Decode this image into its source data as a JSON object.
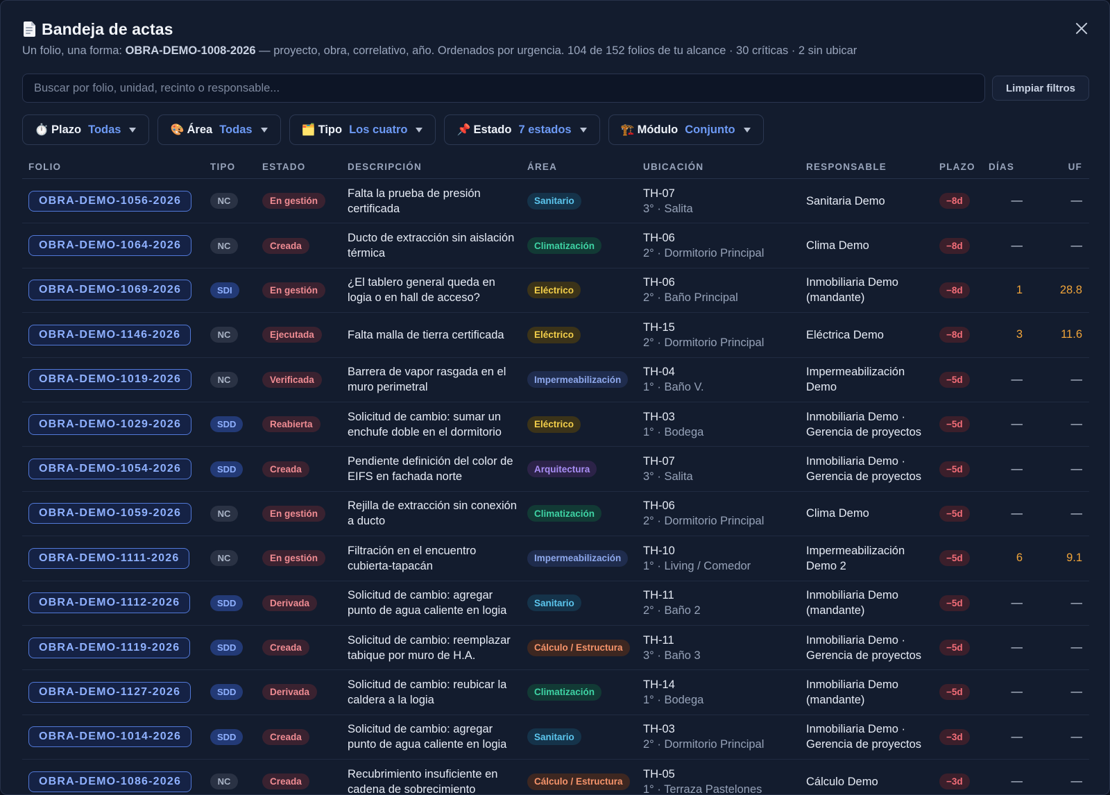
{
  "header": {
    "title": "Bandeja de actas",
    "sub_prefix": "Un folio, una forma: ",
    "sub_bold": "OBRA-DEMO-1008-2026",
    "sub_rest": " — proyecto, obra, correlativo, año. Ordenados por urgencia. 104 de 152 folios de tu alcance · 30 críticas · 2 sin ubicar"
  },
  "search": {
    "placeholder": "Buscar por folio, unidad, recinto o responsable...",
    "value": ""
  },
  "clear_label": "Limpiar filtros",
  "filters": [
    {
      "icon": "⏱️",
      "icon_name": "stopwatch-icon",
      "label": "Plazo",
      "value": "Todas"
    },
    {
      "icon": "🎨",
      "icon_name": "palette-icon",
      "label": "Área",
      "value": "Todas"
    },
    {
      "icon": "🗂️",
      "icon_name": "folder-icon",
      "label": "Tipo",
      "value": "Los cuatro"
    },
    {
      "icon": "📌",
      "icon_name": "pushpin-icon",
      "label": "Estado",
      "value": "7 estados"
    },
    {
      "icon": "🏗️",
      "icon_name": "crane-icon",
      "label": "Módulo",
      "value": "Conjunto"
    }
  ],
  "columns": [
    "FOLIO",
    "TIPO",
    "ESTADO",
    "DESCRIPCIÓN",
    "ÁREA",
    "UBICACIÓN",
    "RESPONSABLE",
    "PLAZO",
    "DÍAS",
    "UF"
  ],
  "area_colors": {
    "Sanitario": {
      "bg": "#15334a",
      "fg": "#5cc6ee"
    },
    "Climatización": {
      "bg": "#123a35",
      "fg": "#3ed3a4"
    },
    "Eléctrico": {
      "bg": "#3b3319",
      "fg": "#f3cf4a"
    },
    "Impermeabilización": {
      "bg": "#1f2c4d",
      "fg": "#8ea8ec"
    },
    "Arquitectura": {
      "bg": "#2c2348",
      "fg": "#a98ef5"
    },
    "Cálculo / Estructura": {
      "bg": "#3d2721",
      "fg": "#f5936a"
    }
  },
  "rows": [
    {
      "folio": "OBRA-DEMO-1056-2026",
      "tipo": "NC",
      "estado": "En gestión",
      "desc": "Falta la prueba de presión certificada",
      "area": "Sanitario",
      "ub1": "TH-07",
      "ub2": "3° · Salita",
      "resp": "Sanitaria Demo",
      "plazo": "−8d",
      "dias": "—",
      "uf": "—"
    },
    {
      "folio": "OBRA-DEMO-1064-2026",
      "tipo": "NC",
      "estado": "Creada",
      "desc": "Ducto de extracción sin aislación térmica",
      "area": "Climatización",
      "ub1": "TH-06",
      "ub2": "2° · Dormitorio Principal",
      "resp": "Clima Demo",
      "plazo": "−8d",
      "dias": "—",
      "uf": "—"
    },
    {
      "folio": "OBRA-DEMO-1069-2026",
      "tipo": "SDI",
      "estado": "En gestión",
      "desc": "¿El tablero general queda en logia o en hall de acceso?",
      "area": "Eléctrico",
      "ub1": "TH-06",
      "ub2": "2° · Baño Principal",
      "resp": "Inmobiliaria Demo (mandante)",
      "plazo": "−8d",
      "dias": "1",
      "uf": "28.8"
    },
    {
      "folio": "OBRA-DEMO-1146-2026",
      "tipo": "NC",
      "estado": "Ejecutada",
      "desc": "Falta malla de tierra certificada",
      "area": "Eléctrico",
      "ub1": "TH-15",
      "ub2": "2° · Dormitorio Principal",
      "resp": "Eléctrica Demo",
      "plazo": "−8d",
      "dias": "3",
      "uf": "11.6"
    },
    {
      "folio": "OBRA-DEMO-1019-2026",
      "tipo": "NC",
      "estado": "Verificada",
      "desc": "Barrera de vapor rasgada en el muro perimetral",
      "area": "Impermeabilización",
      "ub1": "TH-04",
      "ub2": "1° · Baño V.",
      "resp": "Impermeabilización Demo",
      "plazo": "−5d",
      "dias": "—",
      "uf": "—"
    },
    {
      "folio": "OBRA-DEMO-1029-2026",
      "tipo": "SDD",
      "estado": "Reabierta",
      "desc": "Solicitud de cambio: sumar un enchufe doble en el dormitorio",
      "area": "Eléctrico",
      "ub1": "TH-03",
      "ub2": "1° · Bodega",
      "resp": "Inmobiliaria Demo · Gerencia de proyectos",
      "plazo": "−5d",
      "dias": "—",
      "uf": "—"
    },
    {
      "folio": "OBRA-DEMO-1054-2026",
      "tipo": "SDD",
      "estado": "Creada",
      "desc": "Pendiente definición del color de EIFS en fachada norte",
      "area": "Arquitectura",
      "ub1": "TH-07",
      "ub2": "3° · Salita",
      "resp": "Inmobiliaria Demo · Gerencia de proyectos",
      "plazo": "−5d",
      "dias": "—",
      "uf": "—"
    },
    {
      "folio": "OBRA-DEMO-1059-2026",
      "tipo": "NC",
      "estado": "En gestión",
      "desc": "Rejilla de extracción sin conexión a ducto",
      "area": "Climatización",
      "ub1": "TH-06",
      "ub2": "2° · Dormitorio Principal",
      "resp": "Clima Demo",
      "plazo": "−5d",
      "dias": "—",
      "uf": "—"
    },
    {
      "folio": "OBRA-DEMO-1111-2026",
      "tipo": "NC",
      "estado": "En gestión",
      "desc": "Filtración en el encuentro cubierta-tapacán",
      "area": "Impermeabilización",
      "ub1": "TH-10",
      "ub2": "1° · Living / Comedor",
      "resp": "Impermeabilización Demo 2",
      "plazo": "−5d",
      "dias": "6",
      "uf": "9.1"
    },
    {
      "folio": "OBRA-DEMO-1112-2026",
      "tipo": "SDD",
      "estado": "Derivada",
      "desc": "Solicitud de cambio: agregar punto de agua caliente en logia",
      "area": "Sanitario",
      "ub1": "TH-11",
      "ub2": "2° · Baño 2",
      "resp": "Inmobiliaria Demo (mandante)",
      "plazo": "−5d",
      "dias": "—",
      "uf": "—"
    },
    {
      "folio": "OBRA-DEMO-1119-2026",
      "tipo": "SDD",
      "estado": "Creada",
      "desc": "Solicitud de cambio: reemplazar tabique por muro de H.A.",
      "area": "Cálculo / Estructura",
      "ub1": "TH-11",
      "ub2": "3° · Baño 3",
      "resp": "Inmobiliaria Demo · Gerencia de proyectos",
      "plazo": "−5d",
      "dias": "—",
      "uf": "—"
    },
    {
      "folio": "OBRA-DEMO-1127-2026",
      "tipo": "SDD",
      "estado": "Derivada",
      "desc": "Solicitud de cambio: reubicar la caldera a la logia",
      "area": "Climatización",
      "ub1": "TH-14",
      "ub2": "1° · Bodega",
      "resp": "Inmobiliaria Demo (mandante)",
      "plazo": "−5d",
      "dias": "—",
      "uf": "—"
    },
    {
      "folio": "OBRA-DEMO-1014-2026",
      "tipo": "SDD",
      "estado": "Creada",
      "desc": "Solicitud de cambio: agregar punto de agua caliente en logia",
      "area": "Sanitario",
      "ub1": "TH-03",
      "ub2": "2° · Dormitorio Principal",
      "resp": "Inmobiliaria Demo · Gerencia de proyectos",
      "plazo": "−3d",
      "dias": "—",
      "uf": "—"
    },
    {
      "folio": "OBRA-DEMO-1086-2026",
      "tipo": "NC",
      "estado": "Creada",
      "desc": "Recubrimiento insuficiente en cadena de sobrecimiento",
      "area": "Cálculo / Estructura",
      "ub1": "TH-05",
      "ub2": "1° · Terraza Pastelones",
      "resp": "Cálculo Demo",
      "plazo": "−3d",
      "dias": "—",
      "uf": "—"
    }
  ]
}
